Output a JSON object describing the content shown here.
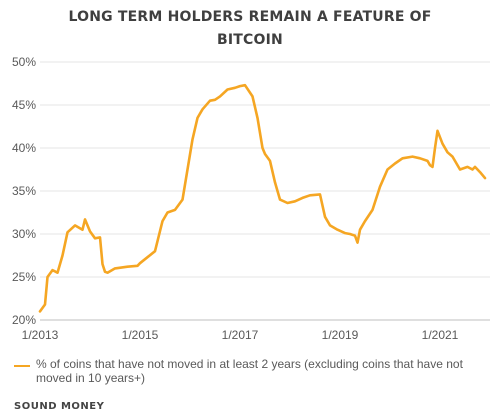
{
  "title_lines": [
    "LONG TERM HOLDERS REMAIN A FEATURE OF",
    "BITCOIN"
  ],
  "footer": "SOUND MONEY",
  "chart_data": {
    "type": "line",
    "title": "LONG TERM HOLDERS REMAIN A FEATURE OF BITCOIN",
    "ylim": [
      20,
      50
    ],
    "y_ticks": [
      "20%",
      "25%",
      "30%",
      "35%",
      "40%",
      "45%",
      "50%"
    ],
    "y_tick_values": [
      20,
      25,
      30,
      35,
      40,
      45,
      50
    ],
    "x_ticks": [
      "1/2013",
      "1/2015",
      "1/2017",
      "1/2019",
      "1/2021"
    ],
    "x_tick_values": [
      2013,
      2015,
      2017,
      2019,
      2021
    ],
    "xlim": [
      2013,
      2021.9
    ],
    "grid": "horizontal",
    "legend_position": "bottom",
    "color": "#f5a623",
    "series": [
      {
        "name": "% of coins that have not moved in at least 2 years (excluding coins that have not moved in 10 years+)",
        "points": [
          [
            2013.0,
            21.0
          ],
          [
            2013.1,
            21.8
          ],
          [
            2013.15,
            25.0
          ],
          [
            2013.25,
            25.8
          ],
          [
            2013.35,
            25.5
          ],
          [
            2013.45,
            27.5
          ],
          [
            2013.55,
            30.2
          ],
          [
            2013.7,
            31.0
          ],
          [
            2013.85,
            30.5
          ],
          [
            2013.9,
            31.7
          ],
          [
            2014.0,
            30.3
          ],
          [
            2014.1,
            29.5
          ],
          [
            2014.2,
            29.6
          ],
          [
            2014.25,
            26.5
          ],
          [
            2014.3,
            25.6
          ],
          [
            2014.35,
            25.5
          ],
          [
            2014.5,
            26.0
          ],
          [
            2014.75,
            26.2
          ],
          [
            2014.95,
            26.3
          ],
          [
            2015.0,
            26.6
          ],
          [
            2015.15,
            27.3
          ],
          [
            2015.3,
            28.0
          ],
          [
            2015.45,
            31.5
          ],
          [
            2015.55,
            32.5
          ],
          [
            2015.7,
            32.8
          ],
          [
            2015.85,
            34.0
          ],
          [
            2015.95,
            37.5
          ],
          [
            2016.05,
            41.0
          ],
          [
            2016.15,
            43.5
          ],
          [
            2016.25,
            44.5
          ],
          [
            2016.4,
            45.5
          ],
          [
            2016.5,
            45.6
          ],
          [
            2016.6,
            46.0
          ],
          [
            2016.75,
            46.8
          ],
          [
            2016.9,
            47.0
          ],
          [
            2017.0,
            47.2
          ],
          [
            2017.1,
            47.3
          ],
          [
            2017.25,
            46.0
          ],
          [
            2017.35,
            43.5
          ],
          [
            2017.45,
            40.0
          ],
          [
            2017.5,
            39.3
          ],
          [
            2017.6,
            38.5
          ],
          [
            2017.7,
            36.0
          ],
          [
            2017.8,
            34.0
          ],
          [
            2017.95,
            33.6
          ],
          [
            2018.1,
            33.8
          ],
          [
            2018.25,
            34.2
          ],
          [
            2018.4,
            34.5
          ],
          [
            2018.6,
            34.6
          ],
          [
            2018.7,
            32.0
          ],
          [
            2018.8,
            31.0
          ],
          [
            2018.95,
            30.5
          ],
          [
            2019.1,
            30.1
          ],
          [
            2019.2,
            30.0
          ],
          [
            2019.3,
            29.8
          ],
          [
            2019.35,
            29.0
          ],
          [
            2019.4,
            30.5
          ],
          [
            2019.5,
            31.5
          ],
          [
            2019.65,
            32.8
          ],
          [
            2019.8,
            35.5
          ],
          [
            2019.95,
            37.5
          ],
          [
            2020.1,
            38.2
          ],
          [
            2020.25,
            38.8
          ],
          [
            2020.45,
            39.0
          ],
          [
            2020.6,
            38.8
          ],
          [
            2020.75,
            38.5
          ],
          [
            2020.8,
            38.0
          ],
          [
            2020.85,
            37.8
          ],
          [
            2020.9,
            40.0
          ],
          [
            2020.95,
            42.0
          ],
          [
            2021.05,
            40.5
          ],
          [
            2021.15,
            39.5
          ],
          [
            2021.25,
            39.0
          ],
          [
            2021.4,
            37.5
          ],
          [
            2021.55,
            37.8
          ],
          [
            2021.65,
            37.5
          ],
          [
            2021.7,
            37.8
          ],
          [
            2021.8,
            37.2
          ],
          [
            2021.9,
            36.5
          ]
        ]
      }
    ]
  }
}
